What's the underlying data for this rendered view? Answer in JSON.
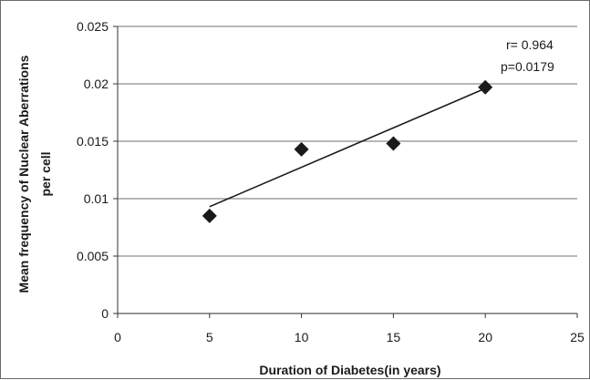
{
  "chart_data": {
    "type": "scatter",
    "xlabel": "Duration of Diabetes(in years)",
    "ylabel_lines": [
      "Mean frequency of Nuclear Aberrations",
      "per cell"
    ],
    "xlim": [
      0,
      25
    ],
    "ylim": [
      0,
      0.025
    ],
    "x_ticks": [
      0,
      5,
      10,
      15,
      20,
      25
    ],
    "y_ticks": [
      0,
      0.005,
      0.01,
      0.015,
      0.02,
      0.025
    ],
    "x_tick_labels": [
      "0",
      "5",
      "10",
      "15",
      "20",
      "25"
    ],
    "y_tick_labels": [
      "0",
      "0.005",
      "0.01",
      "0.015",
      "0.02",
      "0.025"
    ],
    "grid": "horizontal",
    "marker": "diamond",
    "points": [
      {
        "x": 5,
        "y": 0.0085
      },
      {
        "x": 10,
        "y": 0.0143
      },
      {
        "x": 15,
        "y": 0.0148
      },
      {
        "x": 20,
        "y": 0.0197
      }
    ],
    "trendline": {
      "x": [
        5,
        20
      ],
      "y": [
        0.0093,
        0.0196
      ]
    },
    "annotations": [
      "r= 0.964",
      "p=0.0179"
    ],
    "colors": {
      "marker": "#1a1a1a",
      "line": "#1a1a1a",
      "grid": "#8c8c8c"
    }
  }
}
